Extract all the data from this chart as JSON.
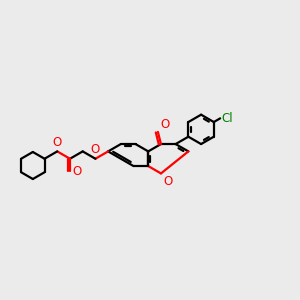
{
  "bg": "#ebebeb",
  "bc": "#000000",
  "oc": "#ff0000",
  "clc": "#008000",
  "lw": 1.6,
  "BL": 0.42,
  "xlim": [
    1.3,
    9.8
  ],
  "ylim": [
    3.0,
    7.5
  ]
}
